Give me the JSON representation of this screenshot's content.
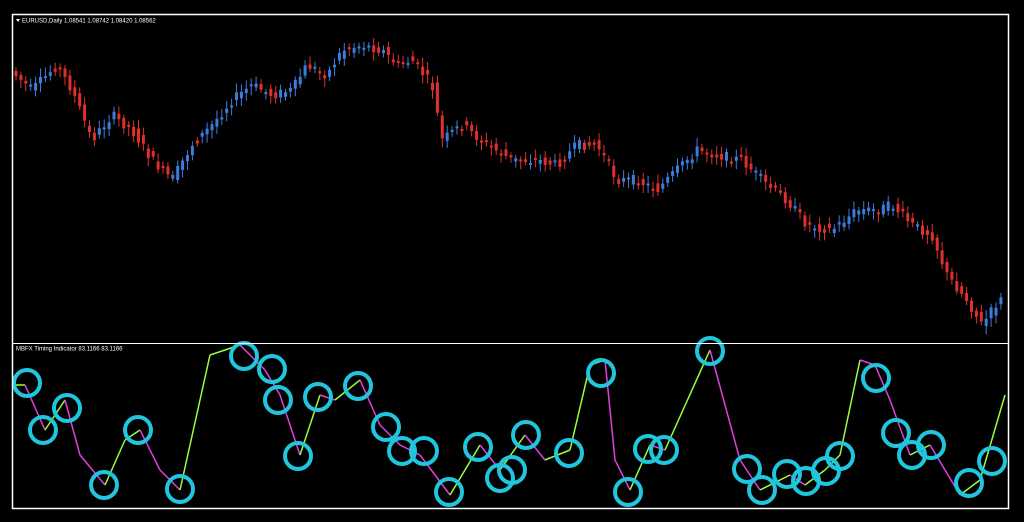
{
  "price_panel": {
    "label": "EURUSD,Daily  1.08541 1.08742 1.08420 1.08562"
  },
  "indicator_panel": {
    "label": "MBFX Timing Indicator 83.1166 83.1166"
  }
}
